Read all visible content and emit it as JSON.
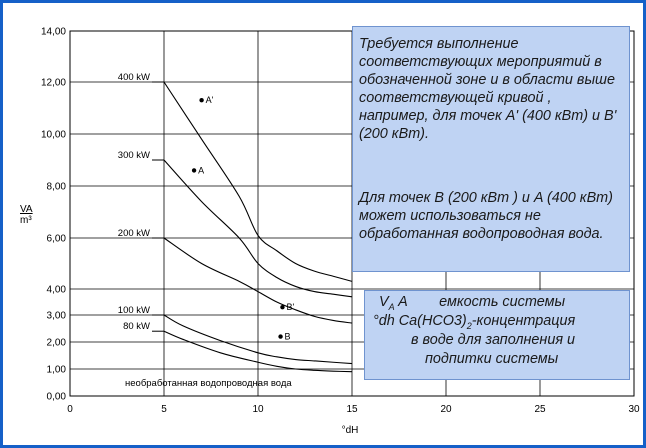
{
  "chart_data": {
    "type": "line",
    "xlabel": "°dH",
    "ylabel_top": "VA",
    "ylabel_bottom": "m³",
    "xlim": [
      0,
      30
    ],
    "ylim": [
      0,
      14
    ],
    "x_ticks": [
      "0",
      "5",
      "10",
      "15",
      "20",
      "25",
      "30"
    ],
    "y_ticks": [
      "0,00",
      "1,00",
      "2,00",
      "3,00",
      "4,00",
      "6,00",
      "8,00",
      "10,00",
      "12,00",
      "14,00"
    ],
    "y_tick_values": [
      0,
      1,
      2,
      3,
      4,
      6,
      8,
      10,
      12,
      14
    ],
    "series": [
      {
        "name": "400 kW",
        "x": [
          5,
          7,
          9,
          10,
          11,
          12,
          13,
          14,
          15
        ],
        "y": [
          12,
          9.8,
          7.6,
          6.1,
          5.5,
          5.0,
          4.7,
          4.5,
          4.3
        ]
      },
      {
        "name": "300 kW",
        "x": [
          5,
          7,
          9,
          10,
          11,
          12,
          13,
          14,
          15
        ],
        "y": [
          9,
          7.4,
          6.0,
          5.0,
          4.45,
          4.1,
          3.9,
          3.8,
          3.7
        ]
      },
      {
        "name": "200 kW",
        "x": [
          5,
          7,
          9,
          10,
          11,
          12,
          13,
          14,
          15
        ],
        "y": [
          6,
          5.0,
          4.3,
          3.9,
          3.5,
          3.2,
          2.95,
          2.8,
          2.7
        ]
      },
      {
        "name": "100 kW",
        "x": [
          5,
          6,
          8,
          10,
          11,
          12,
          13,
          14,
          15
        ],
        "y": [
          3,
          2.6,
          2.05,
          1.6,
          1.45,
          1.35,
          1.3,
          1.25,
          1.2
        ]
      },
      {
        "name": "80 kW",
        "x": [
          5,
          6,
          8,
          10,
          11,
          12,
          13,
          14,
          15
        ],
        "y": [
          2.4,
          2.1,
          1.6,
          1.25,
          1.1,
          1.0,
          0.95,
          0.92,
          0.9
        ]
      }
    ],
    "points": [
      {
        "label": "A'",
        "x": 7,
        "y": 11.3
      },
      {
        "label": "A",
        "x": 6.6,
        "y": 8.6
      },
      {
        "label": "B'",
        "x": 11.3,
        "y": 3.3
      },
      {
        "label": "B",
        "x": 11.2,
        "y": 2.2
      }
    ],
    "bottom_label": "необработанная водопроводная вода",
    "colors": {
      "frame": "#1560c8",
      "box_fill": "#bfd3f3",
      "box_border": "#6f93cf"
    }
  },
  "note": {
    "paragraph1": "Требуется выполнение соответствующих мероприятий в обозначенной зоне и в области выше соответствующей кривой , например, для точек A' (400 кВт) и B' (200 кВт).",
    "paragraph2": "Для точек B (200 кВт ) и A (400 кВт) может использоваться не обработанная водопроводная вода."
  },
  "legend": {
    "line1_symbol": "V",
    "line1_sub": "A",
    "line1_term": "A",
    "line1_text": "емкость системы",
    "line2_symbol": "°dh",
    "line2_formula": "Ca(HCO3)",
    "line2_sub": "2",
    "line2_text": "-концентрация",
    "line3": "в воде для заполнения и",
    "line4": "подпитки системы"
  }
}
